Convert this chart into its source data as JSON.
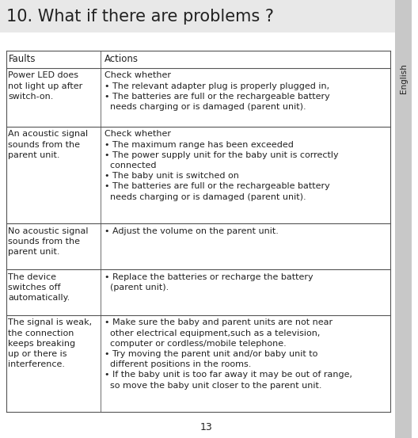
{
  "title": "10. What if there are problems ?",
  "title_bg": "#e8e8e8",
  "page_bg": "#ffffff",
  "sidebar_color": "#c8c8c8",
  "sidebar_text": "English",
  "header_row": [
    "Faults",
    "Actions"
  ],
  "rows": [
    {
      "fault": "Power LED does\nnot light up after\nswitch-on.",
      "action": "Check whether\n• The relevant adapter plug is properly plugged in,\n• The batteries are full or the rechargeable battery\n  needs charging or is damaged (parent unit)."
    },
    {
      "fault": "An acoustic signal\nsounds from the\nparent unit.",
      "action": "Check whether\n• The maximum range has been exceeded\n• The power supply unit for the baby unit is correctly\n  connected\n• The baby unit is switched on\n• The batteries are full or the rechargeable battery\n  needs charging or is damaged (parent unit)."
    },
    {
      "fault": "No acoustic signal\nsounds from the\nparent unit.",
      "action": "• Adjust the volume on the parent unit."
    },
    {
      "fault": "The device\nswitches off\nautomatically.",
      "action": "• Replace the batteries or recharge the battery\n  (parent unit)."
    },
    {
      "fault": "The signal is weak,\nthe connection\nkeeps breaking\nup or there is\ninterference.",
      "action": "• Make sure the baby and parent units are not near\n  other electrical equipment,such as a television,\n  computer or cordless/mobile telephone.\n• Try moving the parent unit and/or baby unit to\n  different positions in the rooms.\n• If the baby unit is too far away it may be out of range,\n  so move the baby unit closer to the parent unit."
    }
  ],
  "page_number": "13",
  "font_size_title": 15,
  "font_size_header": 8.5,
  "font_size_body": 8.0,
  "col_split": 0.245,
  "line_color": "#555555",
  "text_color": "#222222"
}
